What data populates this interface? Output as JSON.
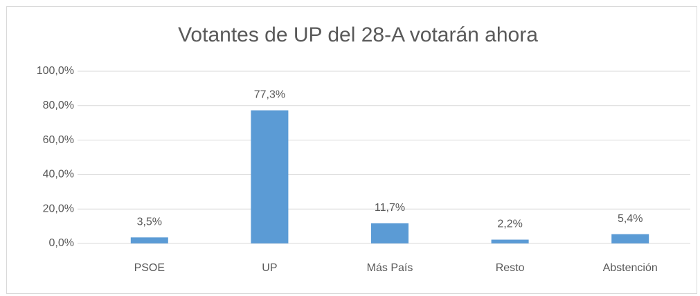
{
  "chart_data": {
    "type": "bar",
    "title": "Votantes de UP del 28-A votarán ahora",
    "categories": [
      "PSOE",
      "UP",
      "Más País",
      "Resto",
      "Abstención"
    ],
    "values": [
      3.5,
      77.3,
      11.7,
      2.2,
      5.4
    ],
    "value_labels": [
      "3,5%",
      "77,3%",
      "11,7%",
      "2,2%",
      "5,4%"
    ],
    "color": "#5b9bd5",
    "ylim": [
      0,
      100
    ],
    "yticks": [
      {
        "value": 0,
        "label": "0,0%"
      },
      {
        "value": 20,
        "label": "20,0%"
      },
      {
        "value": 40,
        "label": "40,0%"
      },
      {
        "value": 60,
        "label": "60,0%"
      },
      {
        "value": 80,
        "label": "80,0%"
      },
      {
        "value": 100,
        "label": "100,0%"
      }
    ],
    "grid": true
  }
}
